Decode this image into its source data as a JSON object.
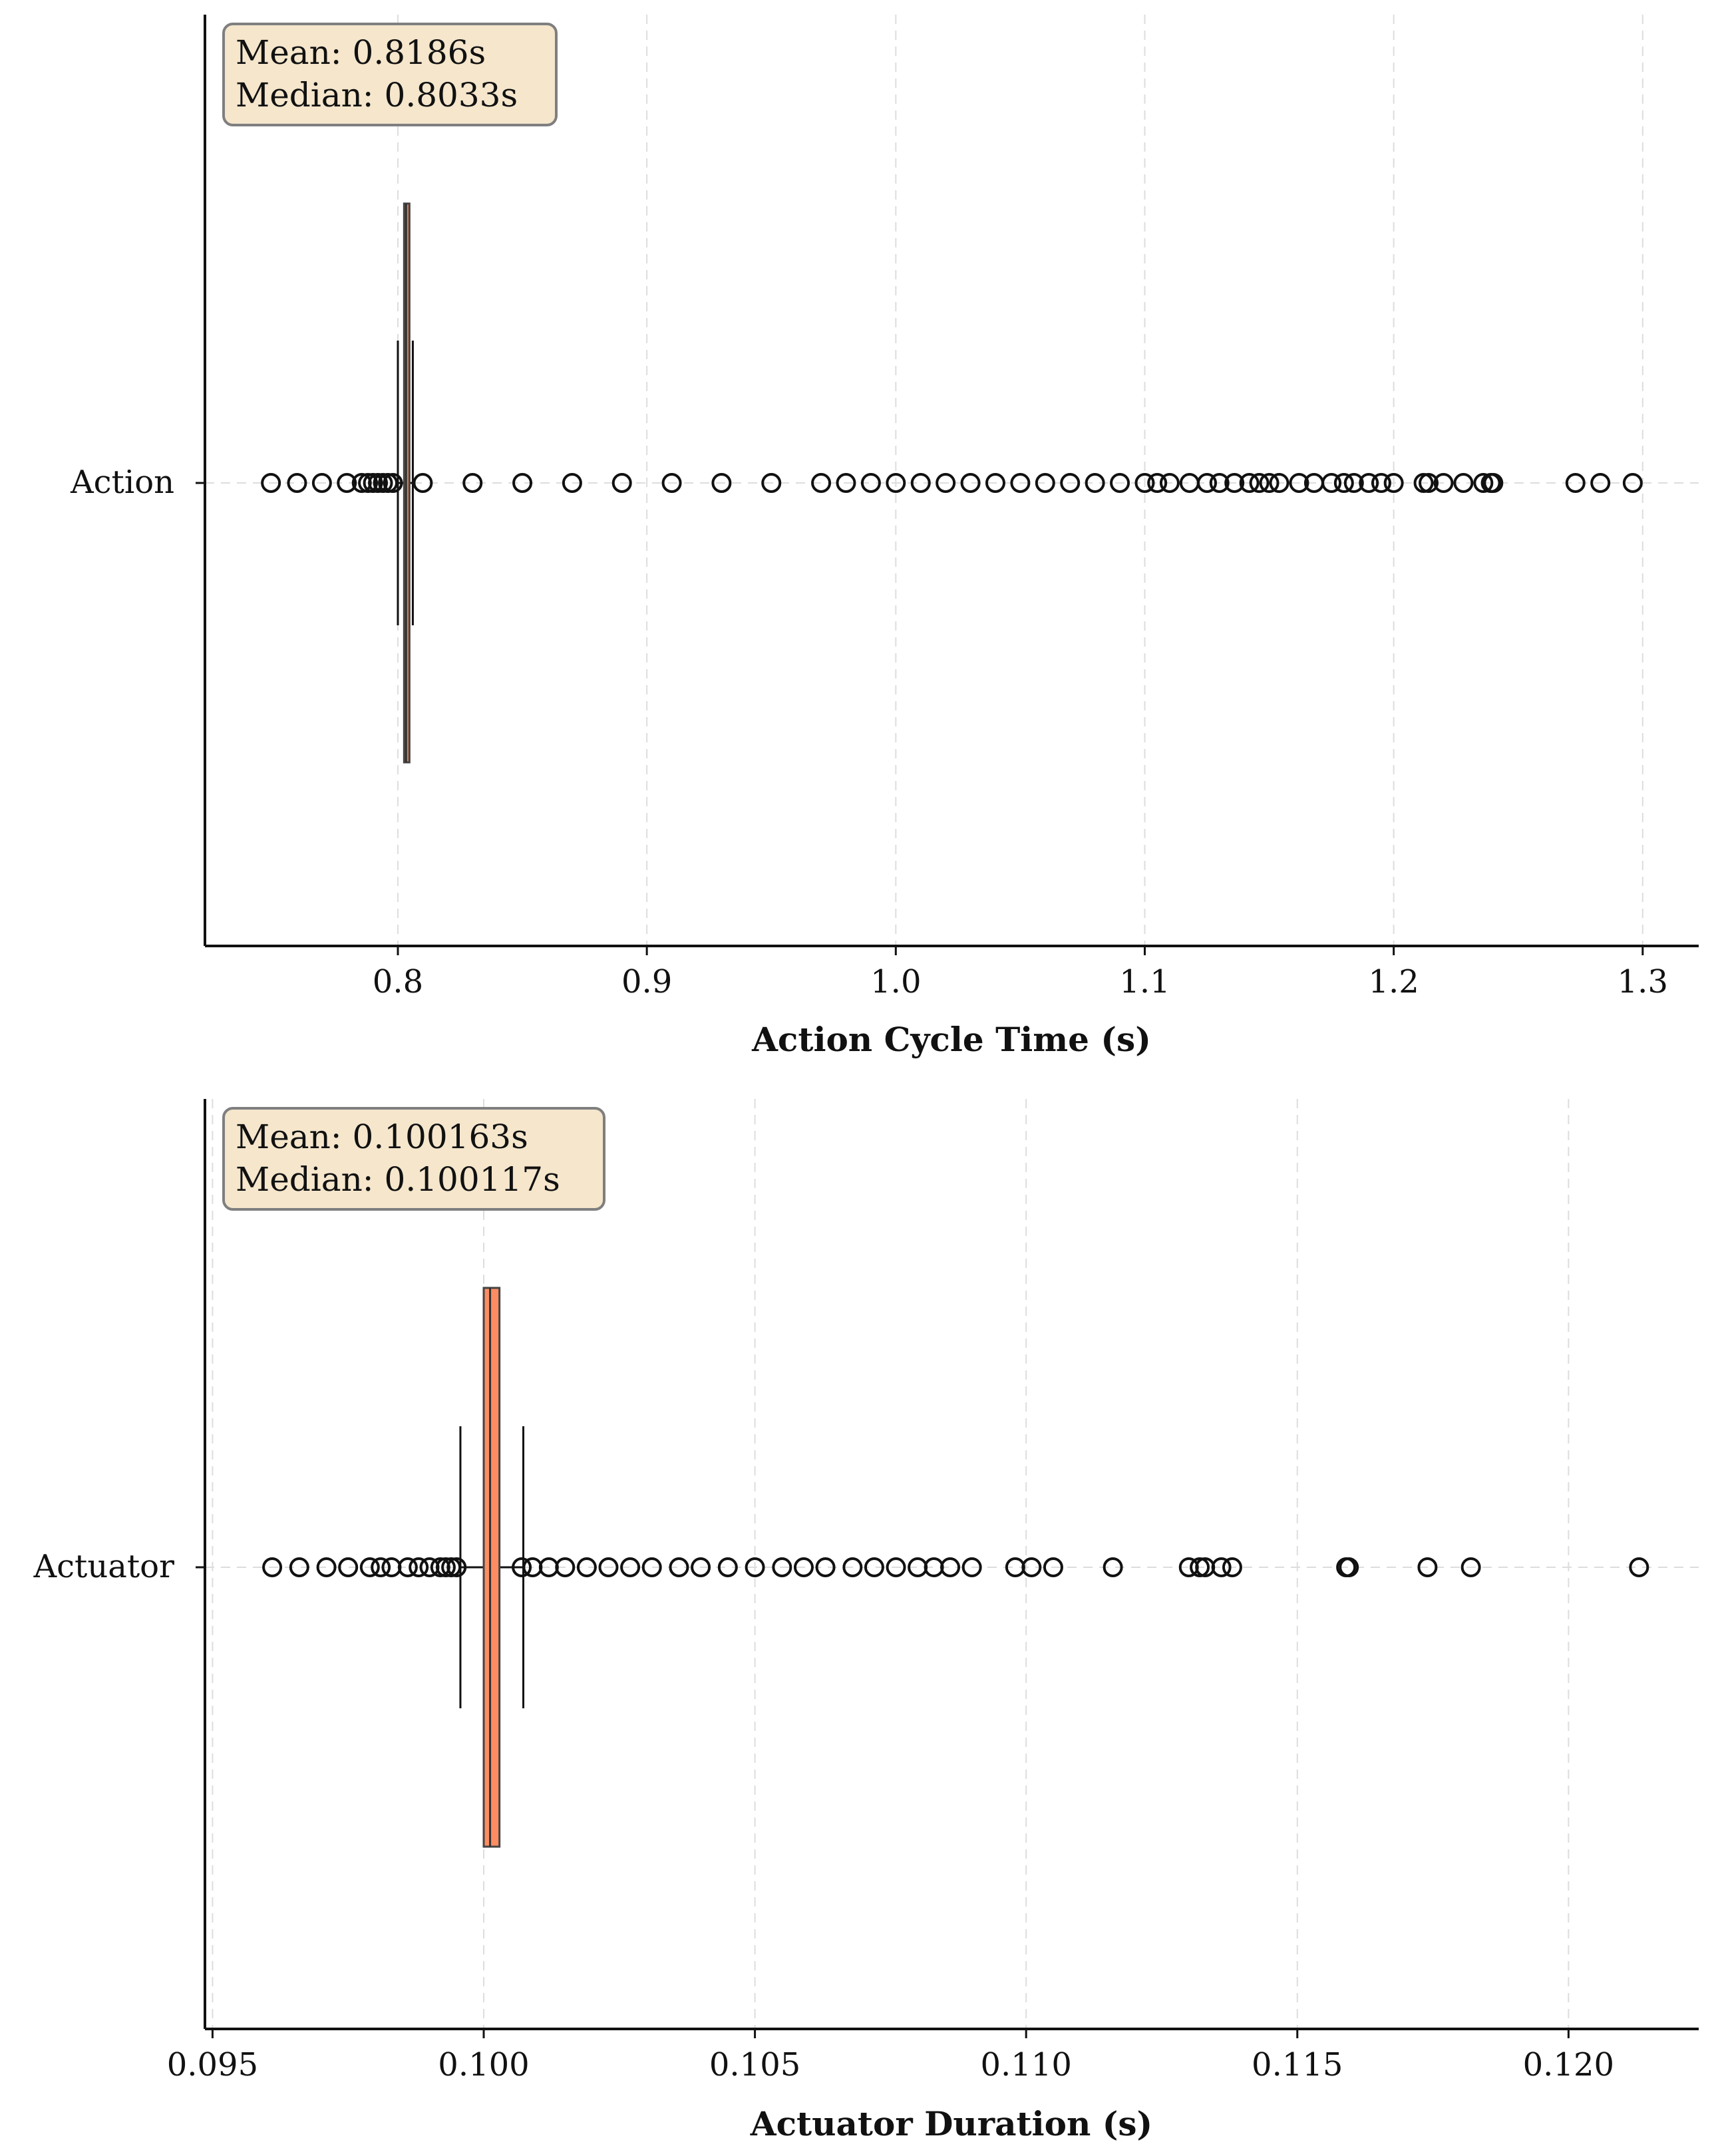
{
  "chart_data": [
    {
      "type": "boxplot",
      "orientation": "horizontal",
      "category": "Action",
      "xlabel": "Action Cycle Time (s)",
      "xlim": [
        0.7225,
        1.3225
      ],
      "xticks": [
        0.8,
        0.9,
        1.0,
        1.1,
        1.2,
        1.3
      ],
      "xtick_labels": [
        "0.8",
        "0.9",
        "1.0",
        "1.1",
        "1.2",
        "1.3"
      ],
      "grid": true,
      "box": {
        "q1": 0.8025,
        "median": 0.8033,
        "q3": 0.8043,
        "whisker_low": 0.8,
        "whisker_high": 0.806
      },
      "fliers": [
        0.749,
        0.7595,
        0.7695,
        0.7795,
        0.7855,
        0.788,
        0.79,
        0.792,
        0.794,
        0.796,
        0.798,
        0.81,
        0.83,
        0.85,
        0.87,
        0.89,
        0.91,
        0.93,
        0.95,
        0.97,
        0.98,
        0.99,
        1.0,
        1.01,
        1.02,
        1.03,
        1.04,
        1.05,
        1.06,
        1.07,
        1.08,
        1.09,
        1.1,
        1.105,
        1.11,
        1.118,
        1.125,
        1.13,
        1.136,
        1.142,
        1.146,
        1.15,
        1.154,
        1.162,
        1.168,
        1.175,
        1.18,
        1.184,
        1.19,
        1.195,
        1.2,
        1.212,
        1.214,
        1.22,
        1.228,
        1.236,
        1.239,
        1.24,
        1.273,
        1.283,
        1.296
      ],
      "fill_color": "#dd8452",
      "stats": {
        "mean": "Mean: 0.8186s",
        "median": "Median: 0.8033s"
      }
    },
    {
      "type": "boxplot",
      "orientation": "horizontal",
      "category": "Actuator",
      "xlabel": "Actuator Duration (s)",
      "xlim": [
        0.09486,
        0.1224
      ],
      "xticks": [
        0.095,
        0.1,
        0.105,
        0.11,
        0.115,
        0.12
      ],
      "xtick_labels": [
        "0.095",
        "0.100",
        "0.105",
        "0.110",
        "0.115",
        "0.120"
      ],
      "grid": true,
      "box": {
        "q1": 0.1,
        "median": 0.100117,
        "q3": 0.10029,
        "whisker_low": 0.09957,
        "whisker_high": 0.10073
      },
      "fliers": [
        0.0961,
        0.0966,
        0.0971,
        0.0975,
        0.0979,
        0.0981,
        0.0983,
        0.0986,
        0.0988,
        0.099,
        0.0992,
        0.0993,
        0.0994,
        0.0995,
        0.1007,
        0.1009,
        0.1012,
        0.1015,
        0.1019,
        0.1023,
        0.1027,
        0.1031,
        0.1036,
        0.104,
        0.1045,
        0.105,
        0.1055,
        0.1059,
        0.1063,
        0.1068,
        0.1072,
        0.1076,
        0.108,
        0.1083,
        0.1086,
        0.109,
        0.1098,
        0.1101,
        0.1105,
        0.1116,
        0.113,
        0.1132,
        0.1133,
        0.1136,
        0.1138,
        0.1159,
        0.11595,
        0.1174,
        0.1182,
        0.1213
      ],
      "fill_color": "#fc8d62",
      "stats": {
        "mean": "Mean: 0.100163s",
        "median": "Median: 0.100117s"
      }
    }
  ]
}
